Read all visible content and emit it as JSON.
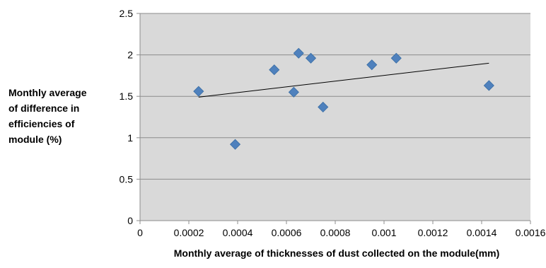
{
  "chart_data": {
    "type": "scatter",
    "title": "",
    "xlabel": "Monthly average of thicknesses of dust collected on the module(mm)",
    "ylabel_lines": [
      "Monthly average",
      "of difference in",
      "efficiencies of",
      "module (%)"
    ],
    "xlim": [
      0,
      0.0016
    ],
    "ylim": [
      0,
      2.5
    ],
    "x_ticks": [
      0,
      0.0002,
      0.0004,
      0.0006,
      0.0008,
      0.001,
      0.0012,
      0.0014,
      0.0016
    ],
    "x_tick_labels": [
      "0",
      "0.0002",
      "0.0004",
      "0.0006",
      "0.0008",
      "0.001",
      "0.0012",
      "0.0014",
      "0.0016"
    ],
    "y_ticks": [
      0,
      0.5,
      1,
      1.5,
      2,
      2.5
    ],
    "y_tick_labels": [
      "0",
      "0.5",
      "1",
      "1.5",
      "2",
      "2.5"
    ],
    "grid": "horizontal",
    "legend": "none",
    "series": [
      {
        "marker": "diamond",
        "color": "#4f81bd",
        "points": [
          {
            "x": 0.00024,
            "y": 1.56
          },
          {
            "x": 0.00039,
            "y": 0.92
          },
          {
            "x": 0.00055,
            "y": 1.82
          },
          {
            "x": 0.00063,
            "y": 1.55
          },
          {
            "x": 0.00065,
            "y": 2.02
          },
          {
            "x": 0.0007,
            "y": 1.96
          },
          {
            "x": 0.00075,
            "y": 1.37
          },
          {
            "x": 0.00095,
            "y": 1.88
          },
          {
            "x": 0.00105,
            "y": 1.96
          },
          {
            "x": 0.00143,
            "y": 1.63
          }
        ]
      }
    ],
    "trendline": {
      "type": "linear",
      "color": "#000000",
      "start": {
        "x": 0.00024,
        "y": 1.49
      },
      "end": {
        "x": 0.00143,
        "y": 1.9
      }
    },
    "colors": {
      "plot_background": "#d9d9d9",
      "gridline": "#8c8c8c",
      "axis": "#8c8c8c"
    }
  }
}
